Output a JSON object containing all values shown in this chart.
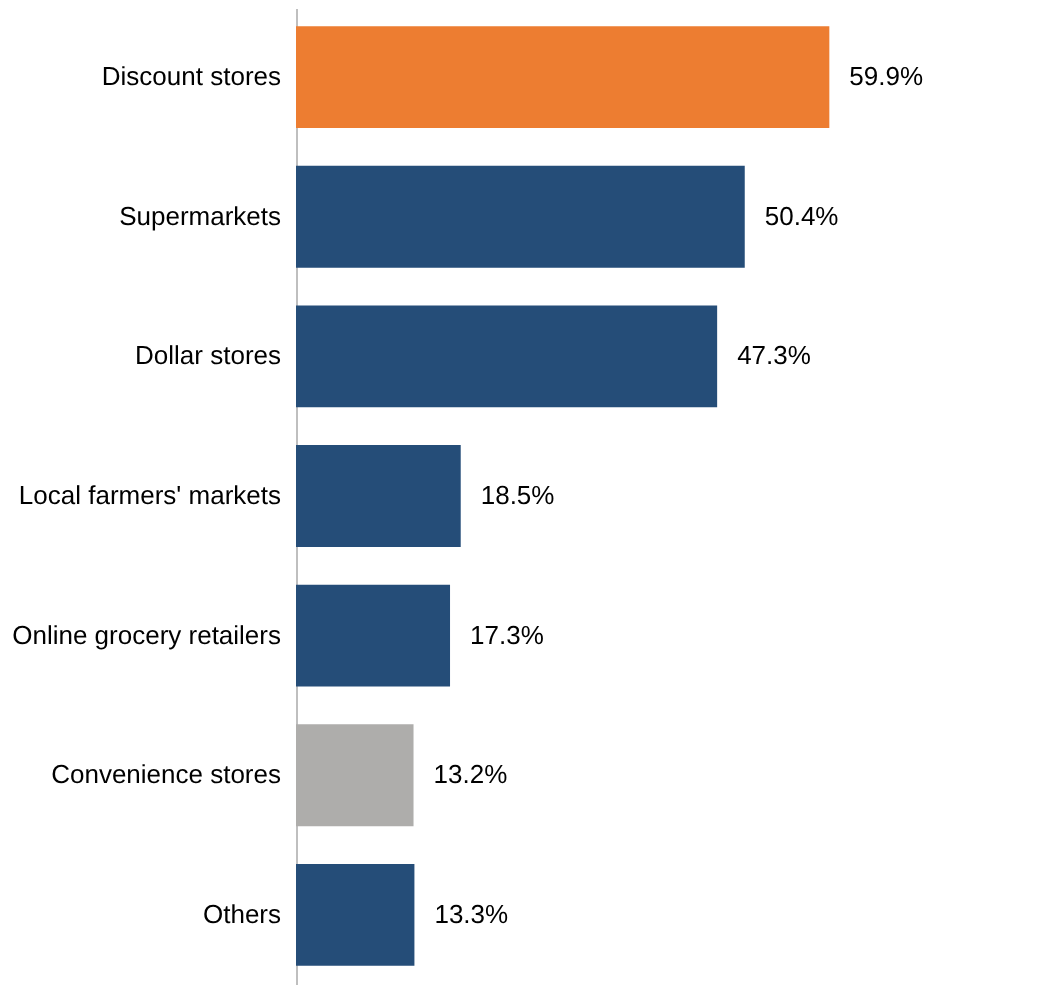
{
  "chart_data": {
    "type": "bar",
    "orientation": "horizontal",
    "grid": false,
    "categories": [
      "Discount stores",
      "Supermarkets",
      "Dollar stores",
      "Local farmers' markets",
      "Online grocery retailers",
      "Convenience stores",
      "Others"
    ],
    "values": [
      59.9,
      50.4,
      47.3,
      18.5,
      17.3,
      13.2,
      13.3
    ],
    "value_labels": [
      "59.9%",
      "50.4%",
      "47.3%",
      "18.5%",
      "17.3%",
      "13.2%",
      "13.3%"
    ],
    "colors": [
      "#ed7d31",
      "#254d78",
      "#254d78",
      "#254d78",
      "#254d78",
      "#aeadab",
      "#254d78"
    ]
  }
}
